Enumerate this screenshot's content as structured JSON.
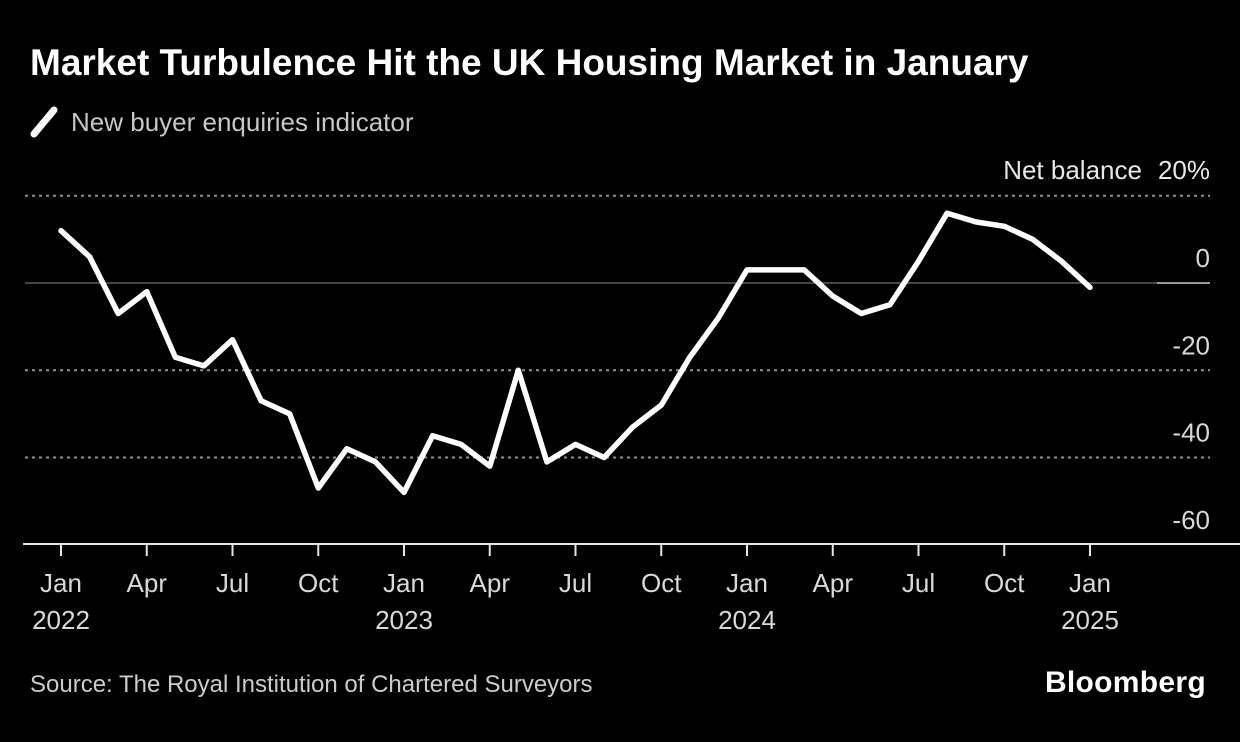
{
  "header": {
    "title": "Market Turbulence Hit the UK Housing Market in January",
    "legend_label": "New buyer enquiries indicator"
  },
  "footer": {
    "source": "Source: The Royal Institution of Chartered Surveyors",
    "brand": "Bloomberg"
  },
  "colors": {
    "background": "#000000",
    "series_line": "#ffffff",
    "title_text": "#ffffff",
    "legend_text": "#c7c7c7",
    "axis_text": "#d9d9d9",
    "annotation_text": "#e8e8e8",
    "dashed_gridline": "#8f8f8f",
    "zero_line": "#464646",
    "zero_line_right_segment": "#9a9a9a",
    "axis_line": "#e6e6e6"
  },
  "chart_data": {
    "type": "line",
    "title": "Market Turbulence Hit the UK Housing Market in January",
    "legend": [
      "New buyer enquiries indicator"
    ],
    "y_axis": {
      "annotation": "Net balance",
      "top_tick_label": "20%",
      "top_tick_value": 20,
      "ylim": [
        -60,
        20
      ],
      "grid": "dashed horizontal at 20, -20, -40; solid at 0; axis baseline at -60",
      "dashed_gridline_values": [
        20,
        -20,
        -40
      ],
      "zero_line_value": 0,
      "baseline_value": -60,
      "ticks": [
        {
          "label": "0",
          "value": 0
        },
        {
          "label": "-20",
          "value": -20
        },
        {
          "label": "-40",
          "value": -40
        },
        {
          "label": "-60",
          "value": -60
        }
      ]
    },
    "x_axis": {
      "start": "Jan 2022",
      "end": "Jan 2025",
      "interval": "monthly",
      "ticks": [
        {
          "month": "Jan",
          "year": "2022",
          "index": 0
        },
        {
          "month": "Apr",
          "index": 3
        },
        {
          "month": "Jul",
          "index": 6
        },
        {
          "month": "Oct",
          "index": 9
        },
        {
          "month": "Jan",
          "year": "2023",
          "index": 12
        },
        {
          "month": "Apr",
          "index": 15
        },
        {
          "month": "Jul",
          "index": 18
        },
        {
          "month": "Oct",
          "index": 21
        },
        {
          "month": "Jan",
          "year": "2024",
          "index": 24
        },
        {
          "month": "Apr",
          "index": 27
        },
        {
          "month": "Jul",
          "index": 30
        },
        {
          "month": "Oct",
          "index": 33
        },
        {
          "month": "Jan",
          "year": "2025",
          "index": 36
        }
      ]
    },
    "series": [
      {
        "name": "New buyer enquiries indicator",
        "unit": "net balance %",
        "values": [
          12,
          6,
          -7,
          -2,
          -17,
          -19,
          -13,
          -27,
          -30,
          -47,
          -38,
          -41,
          -48,
          -35,
          -37,
          -42,
          -20,
          -41,
          -37,
          -40,
          -33,
          -28,
          -17,
          -8,
          3,
          3,
          3,
          -3,
          -7,
          -5,
          5,
          16,
          14,
          13,
          10,
          5,
          -1
        ]
      }
    ],
    "source": "Source: The Royal Institution of Chartered Surveyors",
    "brand": "Bloomberg"
  }
}
